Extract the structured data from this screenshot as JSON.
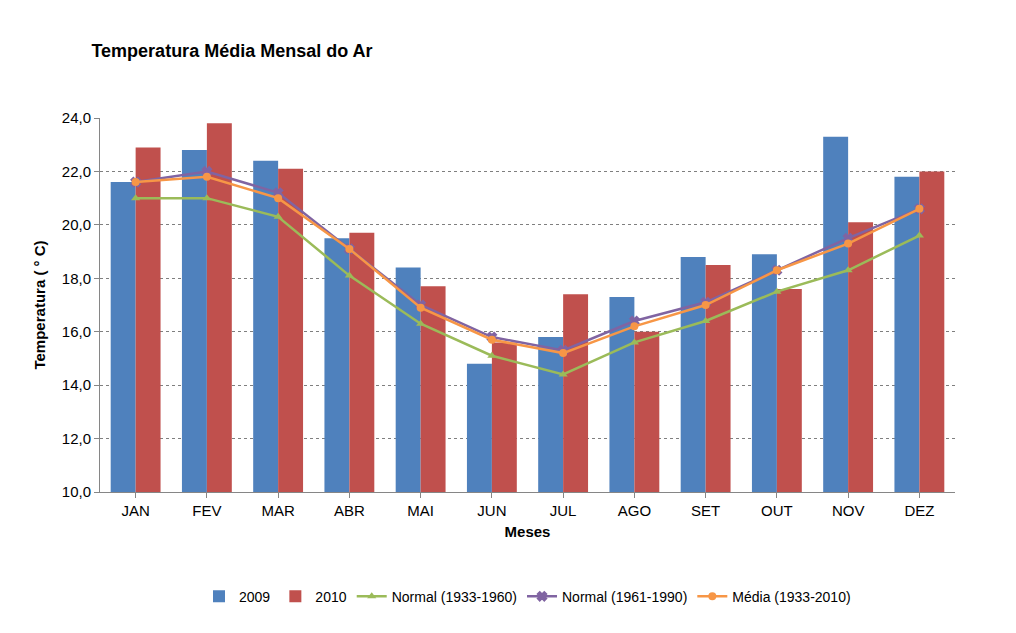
{
  "chart_data": {
    "type": "bar",
    "title": "Temperatura Média Mensal do Ar",
    "x_label": "Meses",
    "y_label": "Temperatura ( ° C)",
    "categories": [
      "JAN",
      "FEV",
      "MAR",
      "ABR",
      "MAI",
      "JUN",
      "JUL",
      "AGO",
      "SET",
      "OUT",
      "NOV",
      "DEZ"
    ],
    "series": [
      {
        "name": "2009",
        "type": "bar",
        "color": "#4f81bd",
        "values": [
          21.6,
          22.8,
          22.4,
          19.5,
          18.4,
          14.8,
          15.8,
          17.3,
          18.8,
          18.9,
          23.3,
          21.8
        ]
      },
      {
        "name": "2010",
        "type": "bar",
        "color": "#c0504d",
        "values": [
          22.9,
          23.8,
          22.1,
          19.7,
          17.7,
          15.6,
          17.4,
          16.0,
          18.5,
          17.6,
          20.1,
          22.0
        ]
      },
      {
        "name": "Normal (1933-1960)",
        "type": "line",
        "color": "#9bbb59",
        "marker": "triangle-up",
        "values": [
          21.0,
          21.0,
          20.3,
          18.1,
          16.3,
          15.1,
          14.4,
          15.6,
          16.4,
          17.5,
          18.3,
          19.6
        ]
      },
      {
        "name": "Normal (1961-1990)",
        "type": "line",
        "color": "#8064a2",
        "marker": "x",
        "values": [
          21.6,
          22.0,
          21.2,
          19.1,
          17.0,
          15.8,
          15.3,
          16.4,
          17.1,
          18.3,
          19.5,
          20.6
        ]
      },
      {
        "name": "Média (1933-2010)",
        "type": "line",
        "color": "#f79646",
        "marker": "circle",
        "values": [
          21.6,
          21.8,
          21.0,
          19.1,
          16.9,
          15.7,
          15.2,
          16.2,
          17.0,
          18.3,
          19.3,
          20.6
        ]
      }
    ],
    "ylim": [
      10,
      24
    ],
    "yticks": [
      {
        "value": 10,
        "label": "10,0"
      },
      {
        "value": 12,
        "label": "12,0"
      },
      {
        "value": 14,
        "label": "14,0"
      },
      {
        "value": 16,
        "label": "16,0"
      },
      {
        "value": 18,
        "label": "18,0"
      },
      {
        "value": 20,
        "label": "20,0"
      },
      {
        "value": 22,
        "label": "22,0"
      },
      {
        "value": 24,
        "label": "24,0"
      }
    ],
    "grid": true,
    "legend": "bottom"
  }
}
